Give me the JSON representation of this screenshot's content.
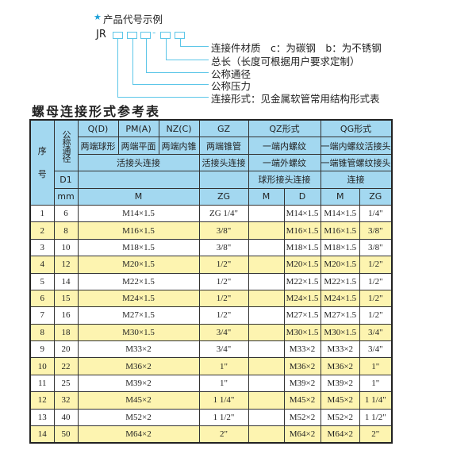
{
  "diagram": {
    "title": "产品代号示例",
    "star_color": "#1aa0d8",
    "code_prefix": "JR",
    "separator": "-",
    "labels": [
      "连接件材质　c：为碳钢　b：为不锈钢",
      "总长（长度可根据用户要求定制）",
      "公称通径",
      "公称压力",
      "连接形式：见金属软管常用结构形式表"
    ]
  },
  "table_title": "螺母连接形式参考表",
  "header": {
    "seq": "序\n\n号",
    "dn": "公称通径",
    "q": "Q(D)",
    "pm": "PM(A)",
    "nz": "NZ(C)",
    "gz": "GZ",
    "qz": "QZ形式",
    "qg": "QG形式",
    "q2": "两端球形",
    "pm2": "两端平面",
    "nz2": "两端内锥",
    "gz2": "两端锥管",
    "qz2": "一端内螺纹",
    "qg2": "一端内螺纹活接头",
    "huo": "活接头连接",
    "gz3": "活接头连接",
    "qz3": "一端外螺纹",
    "qg3": "一端锥管螺纹接头",
    "d1": "D1",
    "qz4": "球形接头连接",
    "qg4": "连接",
    "mm": "mm",
    "m": "M",
    "zg": "ZG",
    "qzm": "M",
    "qzd": "D",
    "qgm": "M",
    "qgzg": "ZG"
  },
  "rows": [
    {
      "no": "1",
      "dn": "6",
      "m": "M14×1.5",
      "gz": "ZG 1/4\"",
      "qzm": "",
      "qzd": "M14×1.5",
      "qgm": "M14×1.5",
      "qgzg": "1/4\""
    },
    {
      "no": "2",
      "dn": "8",
      "m": "M16×1.5",
      "gz": "3/8\"",
      "qzm": "",
      "qzd": "M16×1.5",
      "qgm": "M16×1.5",
      "qgzg": "3/8\""
    },
    {
      "no": "3",
      "dn": "10",
      "m": "M18×1.5",
      "gz": "3/8\"",
      "qzm": "",
      "qzd": "M18×1.5",
      "qgm": "M18×1.5",
      "qgzg": "3/8\""
    },
    {
      "no": "4",
      "dn": "12",
      "m": "M20×1.5",
      "gz": "1/2\"",
      "qzm": "",
      "qzd": "M20×1.5",
      "qgm": "M20×1.5",
      "qgzg": "1/2\""
    },
    {
      "no": "5",
      "dn": "14",
      "m": "M22×1.5",
      "gz": "1/2\"",
      "qzm": "",
      "qzd": "M22×1.5",
      "qgm": "M22×1.5",
      "qgzg": "1/2\""
    },
    {
      "no": "6",
      "dn": "15",
      "m": "M24×1.5",
      "gz": "1/2\"",
      "qzm": "",
      "qzd": "M24×1.5",
      "qgm": "M24×1.5",
      "qgzg": "1/2\""
    },
    {
      "no": "7",
      "dn": "16",
      "m": "M27×1.5",
      "gz": "1/2\"",
      "qzm": "",
      "qzd": "M27×1.5",
      "qgm": "M27×1.5",
      "qgzg": "1/2\""
    },
    {
      "no": "8",
      "dn": "18",
      "m": "M30×1.5",
      "gz": "3/4\"",
      "qzm": "",
      "qzd": "M30×1.5",
      "qgm": "M30×1.5",
      "qgzg": "3/4\""
    },
    {
      "no": "9",
      "dn": "20",
      "m": "M33×2",
      "gz": "3/4\"",
      "qzm": "",
      "qzd": "M33×2",
      "qgm": "M33×2",
      "qgzg": "3/4\""
    },
    {
      "no": "10",
      "dn": "22",
      "m": "M36×2",
      "gz": "1\"",
      "qzm": "",
      "qzd": "M36×2",
      "qgm": "M36×2",
      "qgzg": "1\""
    },
    {
      "no": "11",
      "dn": "25",
      "m": "M39×2",
      "gz": "1\"",
      "qzm": "",
      "qzd": "M39×2",
      "qgm": "M39×2",
      "qgzg": "1\""
    },
    {
      "no": "12",
      "dn": "32",
      "m": "M45×2",
      "gz": "1 1/4\"",
      "qzm": "",
      "qzd": "M45×2",
      "qgm": "M45×2",
      "qgzg": "1 1/4\""
    },
    {
      "no": "13",
      "dn": "40",
      "m": "M52×2",
      "gz": "1 1/2\"",
      "qzm": "",
      "qzd": "M52×2",
      "qgm": "M52×2",
      "qgzg": "1 1/2\""
    },
    {
      "no": "14",
      "dn": "50",
      "m": "M64×2",
      "gz": "2\"",
      "qzm": "",
      "qzd": "M64×2",
      "qgm": "M64×2",
      "qgzg": "2\""
    }
  ],
  "colors": {
    "header": "#a3d8f0",
    "alt_row": "#fdf4b0",
    "leader": "#5cc6e8"
  }
}
